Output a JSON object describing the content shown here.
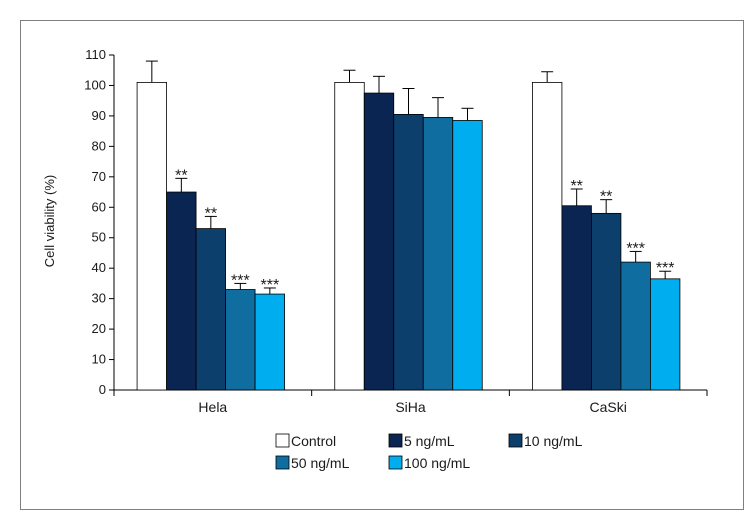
{
  "chart_data": {
    "type": "bar",
    "ylabel": "Cell viability (%)",
    "xlabel": "",
    "ylim": [
      0,
      110
    ],
    "yticks": [
      0,
      10,
      20,
      30,
      40,
      50,
      60,
      70,
      80,
      90,
      100,
      110
    ],
    "categories": [
      "Hela",
      "SiHa",
      "CaSki"
    ],
    "series": [
      {
        "name": "Control",
        "color": "#ffffff",
        "values": [
          101,
          101,
          101
        ],
        "errors": [
          7,
          4,
          3.5
        ],
        "sig": [
          "",
          "",
          ""
        ]
      },
      {
        "name": "5 ng/mL",
        "color": "#0a2552",
        "values": [
          65,
          97.5,
          60.5
        ],
        "errors": [
          4.5,
          5.5,
          5.5
        ],
        "sig": [
          "**",
          "",
          "**"
        ]
      },
      {
        "name": "10 ng/mL",
        "color": "#0d3f6d",
        "values": [
          53,
          90.5,
          58
        ],
        "errors": [
          4,
          8.5,
          4.5
        ],
        "sig": [
          "**",
          "",
          "**"
        ]
      },
      {
        "name": "50 ng/mL",
        "color": "#0f6d9f",
        "values": [
          33,
          89.5,
          42
        ],
        "errors": [
          2,
          6.5,
          3.5
        ],
        "sig": [
          "***",
          "",
          "***"
        ]
      },
      {
        "name": "100 ng/mL",
        "color": "#00aeef",
        "values": [
          31.5,
          88.5,
          36.5
        ],
        "errors": [
          2,
          4,
          2.5
        ],
        "sig": [
          "***",
          "",
          "***"
        ]
      }
    ],
    "legend": {
      "placement": "bottom-center"
    }
  }
}
